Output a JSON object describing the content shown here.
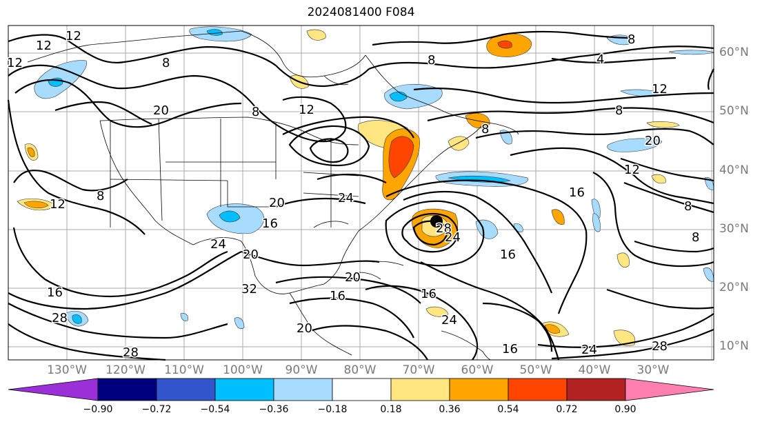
{
  "title": "2024081400 F084",
  "lat_labels": [
    "60°N",
    "50°N",
    "40°N",
    "30°N",
    "20°N",
    "10°N"
  ],
  "lon_labels": [
    "130°W",
    "120°W",
    "110°W",
    "100°W",
    "90°W",
    "80°W",
    "70°W",
    "60°W",
    "50°W",
    "40°W",
    "30°W"
  ],
  "colorbar": {
    "ticks": [
      "−0.90",
      "−0.72",
      "−0.54",
      "−0.36",
      "−0.18",
      "0.18",
      "0.36",
      "0.54",
      "0.72",
      "0.90"
    ],
    "colors": [
      "#9b30d9",
      "#00007f",
      "#3355cc",
      "#00bfff",
      "#a8dcff",
      "#ffffff",
      "#ffe680",
      "#ffa500",
      "#ff4500",
      "#b22222",
      "#ff80b0"
    ]
  },
  "contour_labels": [
    "12",
    "12",
    "12",
    "8",
    "8",
    "8",
    "4",
    "8",
    "12",
    "8",
    "20",
    "8",
    "12",
    "8",
    "20",
    "12",
    "12",
    "8",
    "24",
    "20",
    "24",
    "20",
    "16",
    "16",
    "16",
    "8",
    "28",
    "28",
    "32",
    "16",
    "20",
    "16",
    "24",
    "28",
    "24",
    "16",
    "20",
    "16",
    "28",
    "24"
  ],
  "fill_colors": {
    "light_blue": "#a8dcff",
    "blue": "#00bfff",
    "yellow": "#ffe680",
    "orange": "#ffa500",
    "red": "#ff4500"
  }
}
